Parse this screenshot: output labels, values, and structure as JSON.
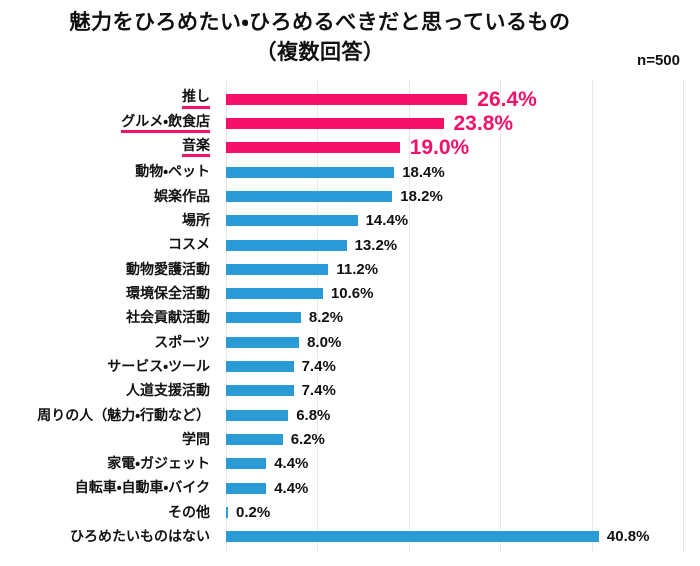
{
  "header": {
    "title_line1": "魅力をひろめたい・ひろめるべきだと思っているもの",
    "title_line2": "（複数回答）",
    "sample_size": "n=500"
  },
  "chart_data": {
    "type": "bar",
    "orientation": "horizontal",
    "title": "魅力をひろめたい・ひろめるべきだと思っているもの（複数回答）",
    "sample_note": "n=500",
    "categories": [
      "推し",
      "グルメ・飲食店",
      "音楽",
      "動物・ペット",
      "娯楽作品",
      "場所",
      "コスメ",
      "動物愛護活動",
      "環境保全活動",
      "社会貢献活動",
      "スポーツ",
      "サービス・ツール",
      "人道支援活動",
      "周りの人（魅力・行動など）",
      "学問",
      "家電・ガジェット",
      "自転車・自動車・バイク",
      "その他",
      "ひろめたいものはない"
    ],
    "values": [
      26.4,
      23.8,
      19.0,
      18.4,
      18.2,
      14.4,
      13.2,
      11.2,
      10.6,
      8.2,
      8.0,
      7.4,
      7.4,
      6.8,
      6.2,
      4.4,
      4.4,
      0.2,
      40.8
    ],
    "value_labels": [
      "26.4%",
      "23.8%",
      "19.0%",
      "18.4%",
      "18.2%",
      "14.4%",
      "13.2%",
      "11.2%",
      "10.6%",
      "8.2%",
      "8.0%",
      "7.4%",
      "7.4%",
      "6.8%",
      "6.2%",
      "4.4%",
      "4.4%",
      "0.2%",
      "40.8%"
    ],
    "highlighted_categories": [
      "推し",
      "グルメ・飲食店",
      "音楽"
    ],
    "highlight_count": 3,
    "colors": {
      "highlight_pink": "#f5116a",
      "bar_blue": "#2b9bd7",
      "gridline": "#e9e9e9",
      "text": "#111111"
    },
    "xlim": [
      0,
      50
    ],
    "gridline_step": 10,
    "grid": true,
    "legend": "none",
    "xlabel": "",
    "ylabel": ""
  }
}
